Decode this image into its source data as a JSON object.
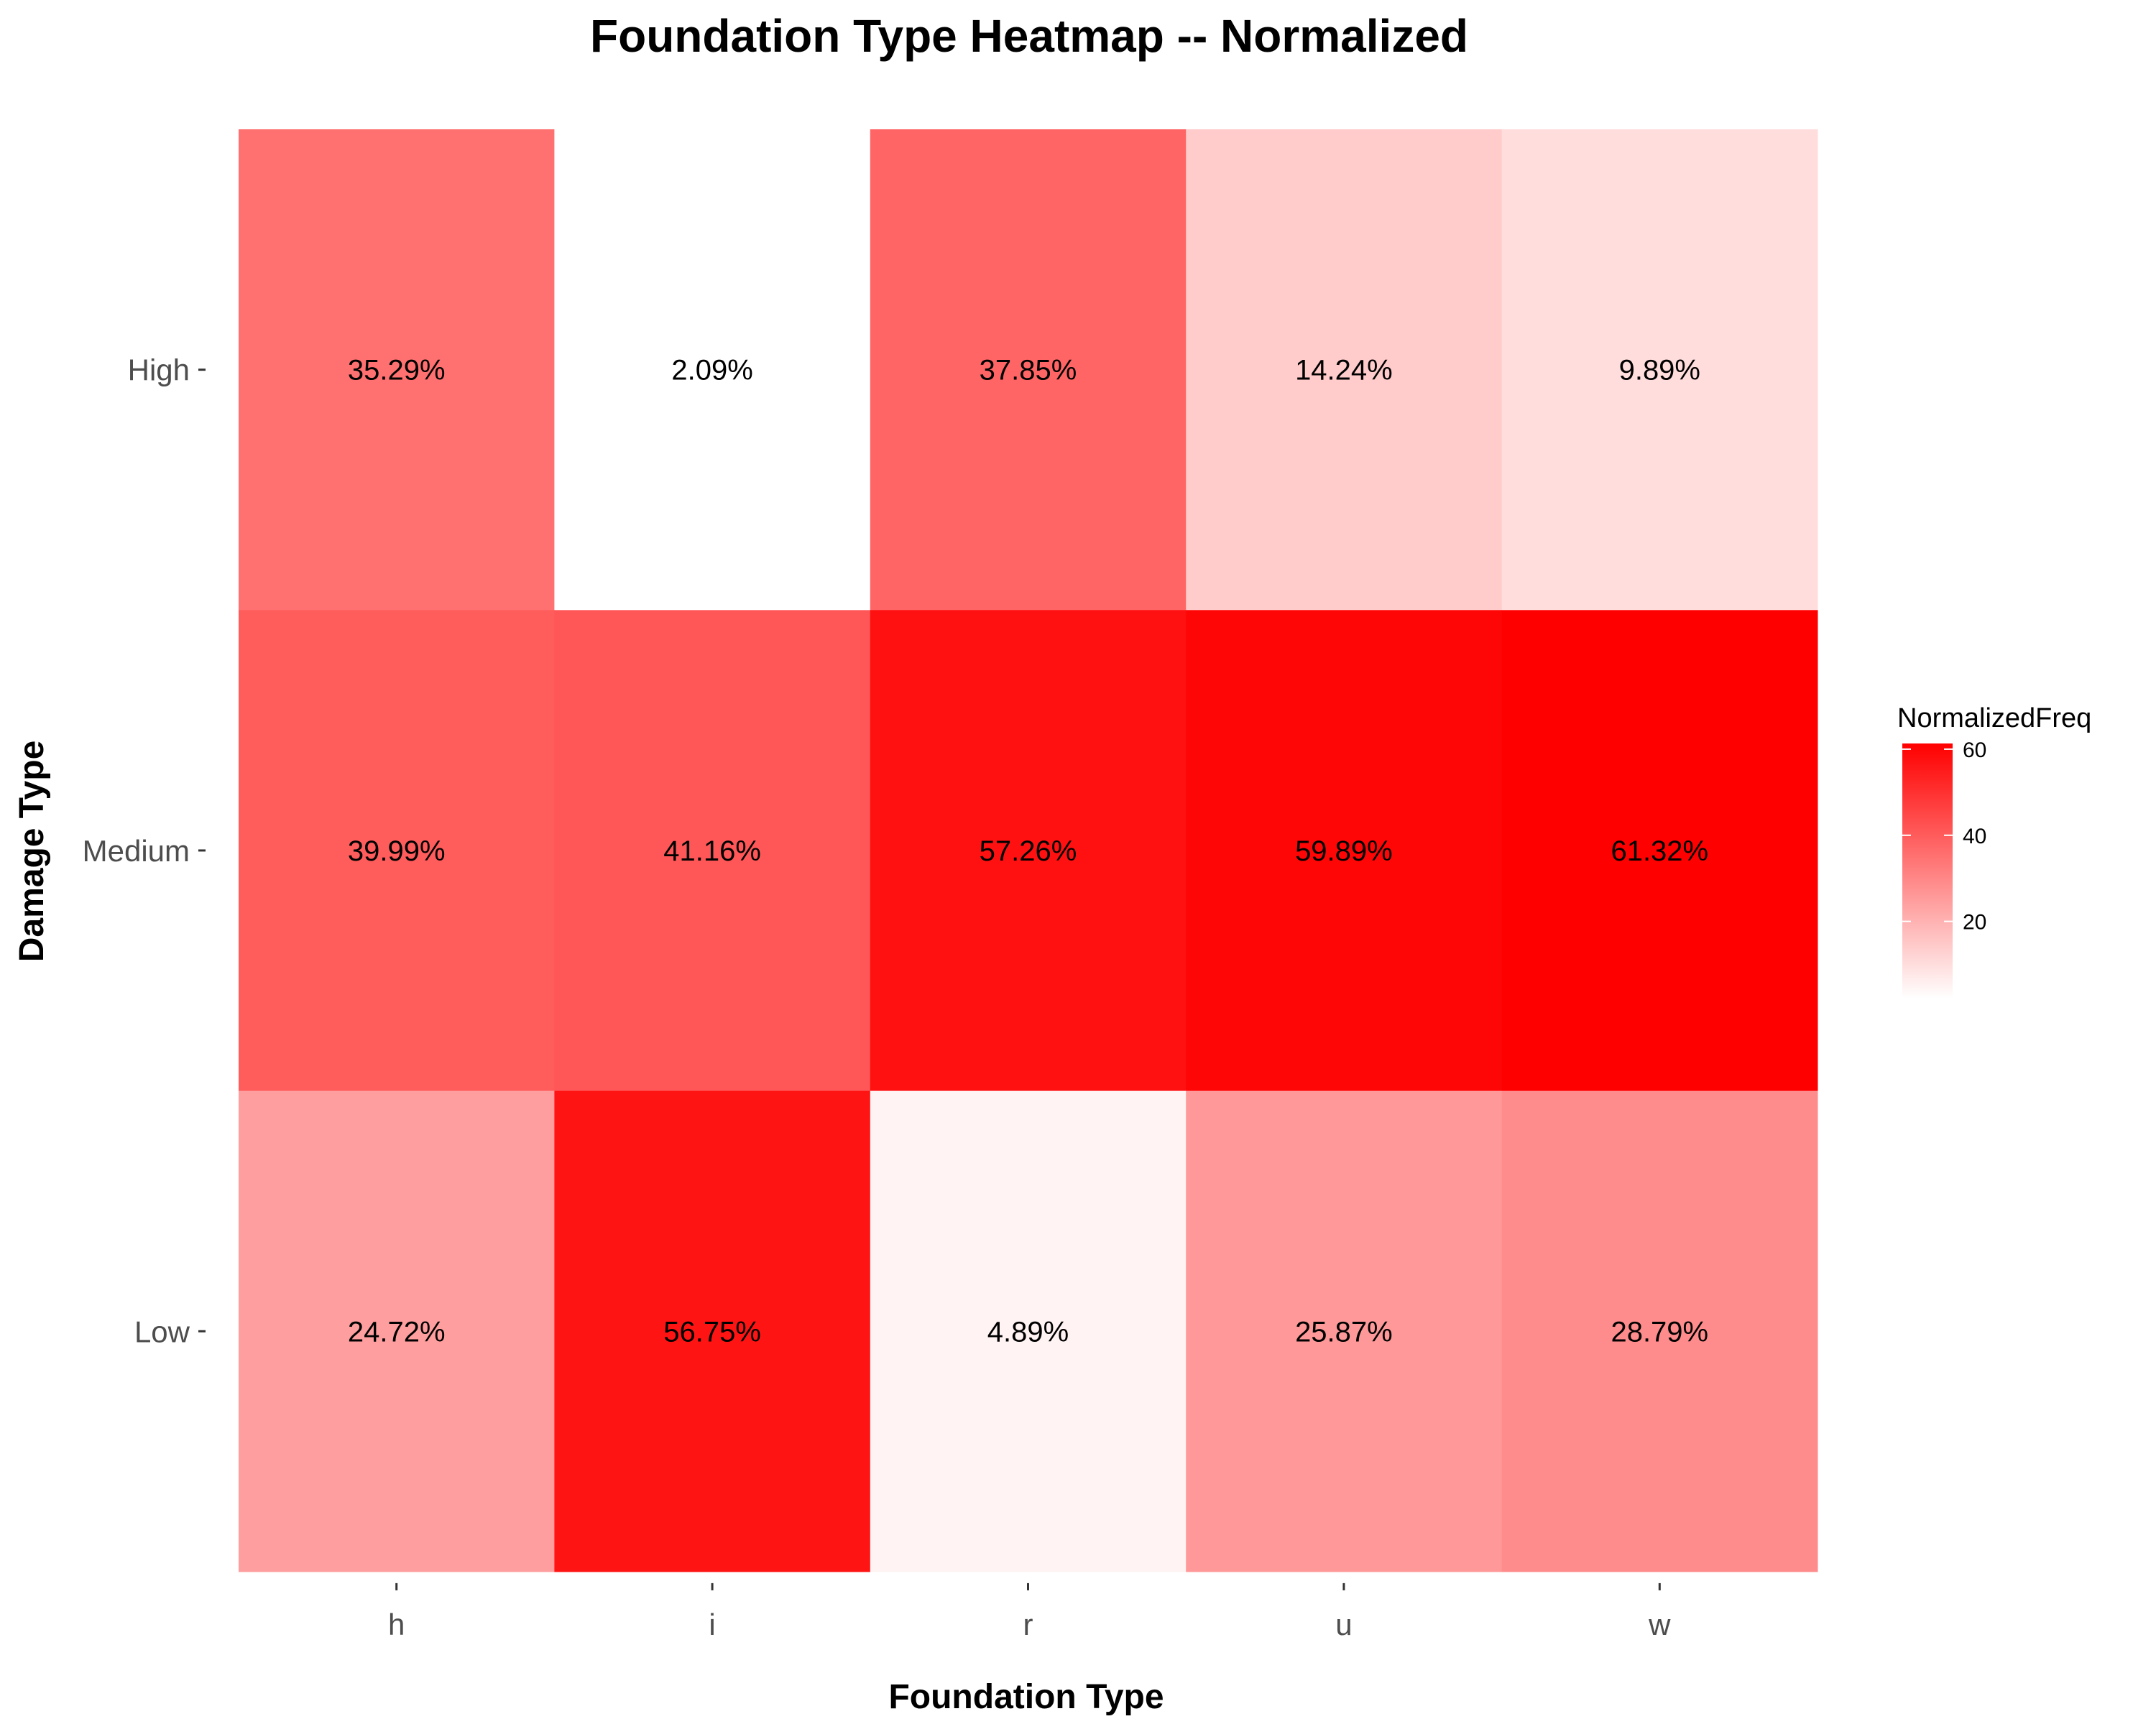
{
  "chart_data": {
    "type": "heatmap",
    "title": "Foundation Type Heatmap -- Normalized",
    "xlabel": "Foundation Type",
    "ylabel": "Damage Type",
    "x_categories": [
      "h",
      "i",
      "r",
      "u",
      "w"
    ],
    "y_categories": [
      "High",
      "Medium",
      "Low"
    ],
    "values": [
      [
        35.29,
        2.09,
        37.85,
        14.24,
        9.89
      ],
      [
        39.99,
        41.16,
        57.26,
        59.89,
        61.32
      ],
      [
        24.72,
        56.75,
        4.89,
        25.87,
        28.79
      ]
    ],
    "labels": [
      [
        "35.29%",
        "2.09%",
        "37.85%",
        "14.24%",
        "9.89%"
      ],
      [
        "39.99%",
        "41.16%",
        "57.26%",
        "59.89%",
        "61.32%"
      ],
      [
        "24.72%",
        "56.75%",
        "4.89%",
        "25.87%",
        "28.79%"
      ]
    ],
    "legend": {
      "title": "NormalizedFreq",
      "ticks": [
        20,
        40,
        60
      ],
      "placement": "right",
      "low_color": "#ffffff",
      "high_color": "#ff0000"
    },
    "color_range": [
      2.09,
      61.32
    ],
    "grid": false
  }
}
